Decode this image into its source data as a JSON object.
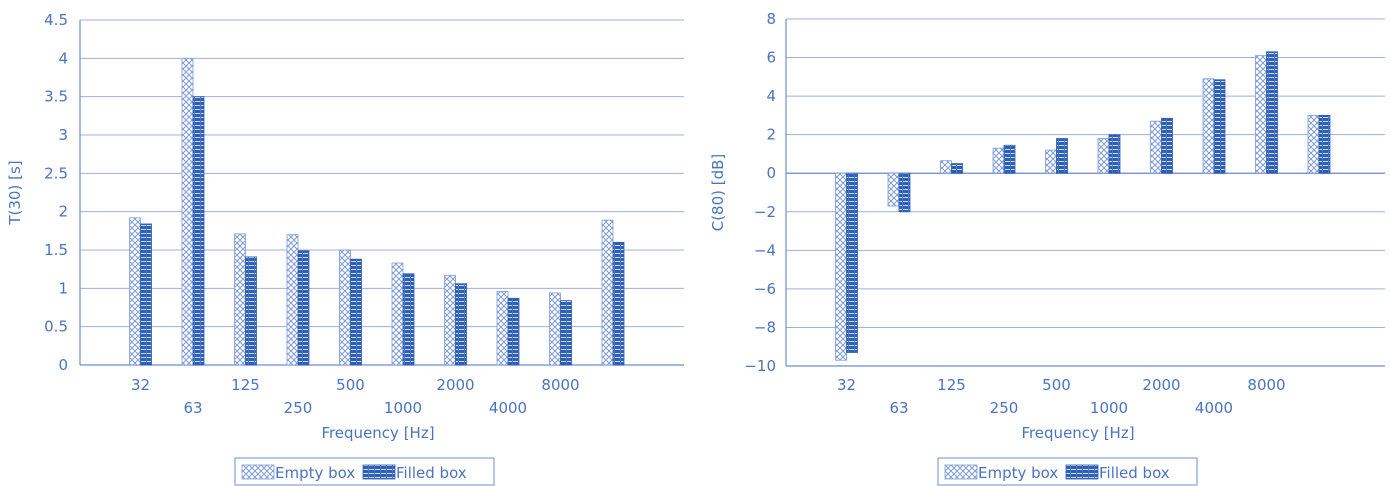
{
  "colors": {
    "axis": "#6e8fcf",
    "grid": "#9cb1de",
    "text": "#4a74c0",
    "empty_stroke": "#7f9bd4",
    "filled_fill": "#2e5fb4",
    "filled_stripe": "#c9d8f3"
  },
  "chart_data": [
    {
      "type": "bar",
      "xlabel": "Frequency [Hz]",
      "ylabel": "T(30) [s]",
      "categories": [
        "32",
        "63",
        "125",
        "250",
        "500",
        "1000",
        "2000",
        "4000",
        "8000",
        ""
      ],
      "series": [
        {
          "name": "Empty box",
          "values": [
            1.92,
            4.0,
            1.71,
            1.7,
            1.5,
            1.33,
            1.17,
            0.96,
            0.94,
            1.89
          ]
        },
        {
          "name": "Filled box",
          "values": [
            1.84,
            3.5,
            1.41,
            1.49,
            1.38,
            1.19,
            1.06,
            0.87,
            0.84,
            1.6
          ]
        }
      ],
      "ylim": [
        0,
        4.5
      ],
      "yticks": [
        "0",
        "0.5",
        "1",
        "1.5",
        "2",
        "2.5",
        "3",
        "3.5",
        "4",
        "4.5"
      ],
      "legend_position": "bottom",
      "grid": true
    },
    {
      "type": "bar",
      "xlabel": "Frequency [Hz]",
      "ylabel": "C(80) [dB]",
      "categories": [
        "32",
        "63",
        "125",
        "250",
        "500",
        "1000",
        "2000",
        "4000",
        "8000",
        ""
      ],
      "series": [
        {
          "name": "Empty box",
          "values": [
            -9.7,
            -1.7,
            0.65,
            1.3,
            1.2,
            1.8,
            2.7,
            4.9,
            6.1,
            3.0
          ]
        },
        {
          "name": "Filled box",
          "values": [
            -9.3,
            -2.0,
            0.5,
            1.45,
            1.8,
            2.0,
            2.85,
            4.85,
            6.3,
            3.0
          ]
        }
      ],
      "ylim": [
        -10,
        8
      ],
      "yticks": [
        "−10",
        "−8",
        "−6",
        "−4",
        "−2",
        "0",
        "2",
        "4",
        "6",
        "8"
      ],
      "legend_position": "bottom",
      "grid": true
    }
  ]
}
